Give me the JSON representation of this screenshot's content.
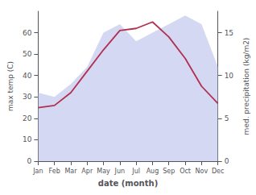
{
  "chart_data": {
    "type": "line",
    "categories": [
      "Jan",
      "Feb",
      "Mar",
      "Apr",
      "May",
      "Jun",
      "Jul",
      "Aug",
      "Sep",
      "Oct",
      "Nov",
      "Dec"
    ],
    "series": [
      {
        "type": "area",
        "axis": "y2",
        "color": "#b0b8e8",
        "values": [
          8,
          7.5,
          9,
          11,
          15,
          16,
          14,
          15,
          16,
          17,
          16,
          11
        ]
      },
      {
        "type": "line",
        "color": "#b03050",
        "values": [
          25,
          26,
          32,
          42,
          52,
          61,
          62,
          65,
          58,
          48,
          35,
          27
        ]
      }
    ],
    "xlabel": "date (month)",
    "ylabel": "max temp (C)",
    "y2label": "med. precipitation (kg/m2)",
    "ylim": [
      0,
      70
    ],
    "yticks": [
      0,
      10,
      20,
      30,
      40,
      50,
      60
    ],
    "y2lim": [
      0,
      17.5
    ],
    "y2ticks": [
      0,
      5,
      10,
      15
    ],
    "grid": false
  }
}
